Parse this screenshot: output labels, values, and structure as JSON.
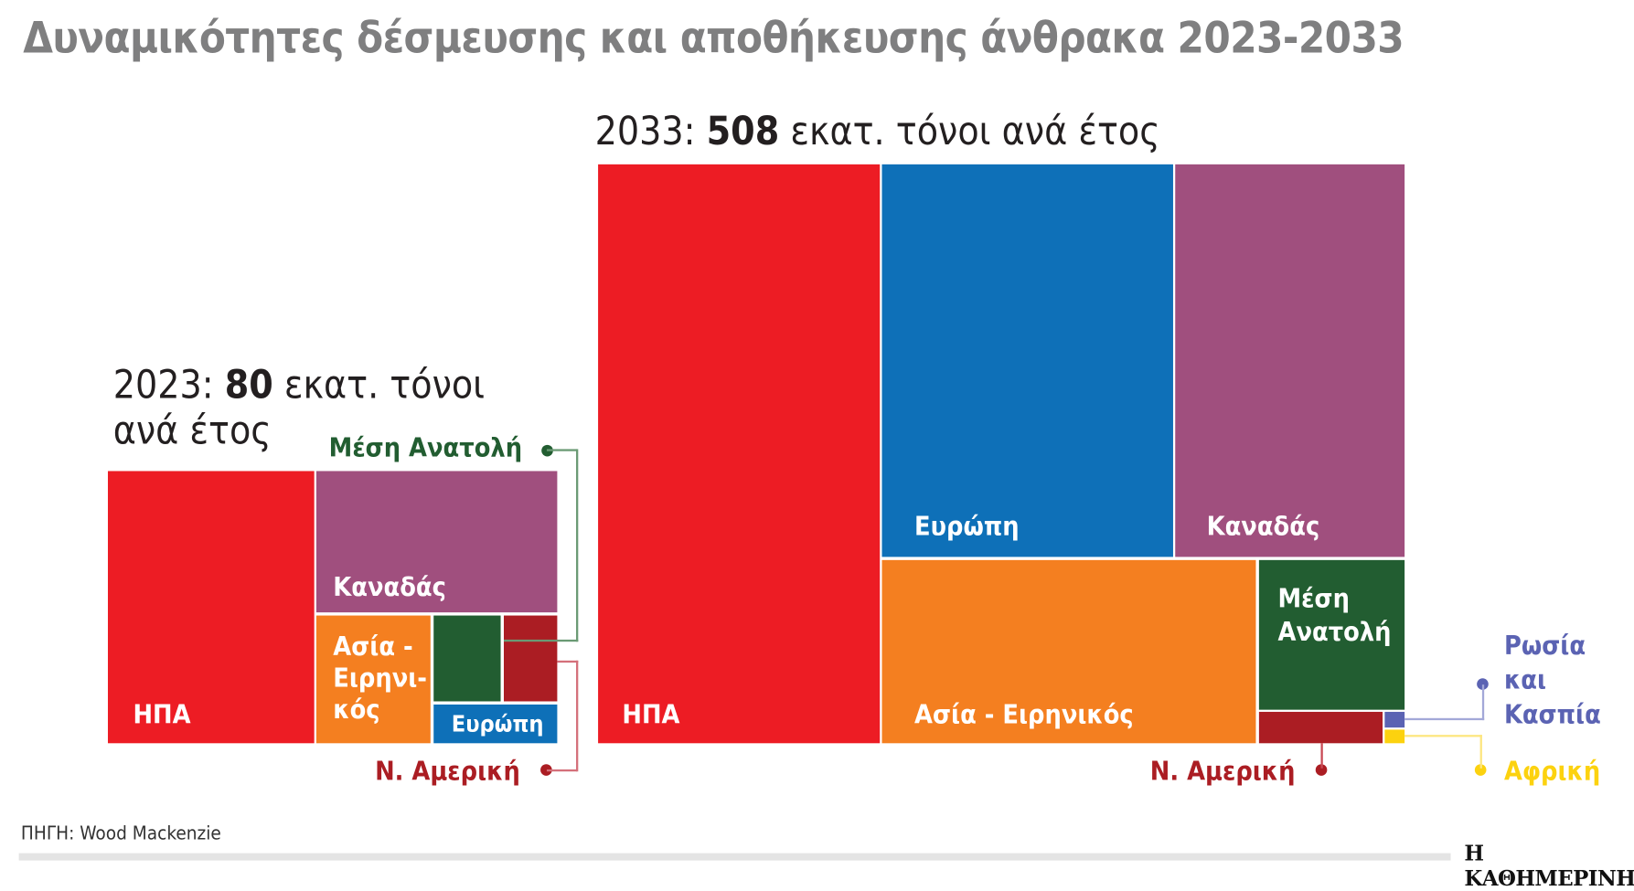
{
  "title": "Δυναμικότητες δέσμευσης και αποθήκευσης άνθρακα 2023-2033",
  "source": "ΠΗΓΗ: Wood Mackenzie",
  "logo": "Η ΚΑΘΗΜΕΡΙΝΗ",
  "colors": {
    "usa": "#ed1c24",
    "europe": "#0e70b8",
    "canada": "#a04f7e",
    "asia_pacific": "#f47f20",
    "middle_east": "#225d31",
    "south_america": "#ab1d23",
    "russia_caspian": "#5b63b3",
    "africa": "#fcd20f"
  },
  "chart_data": [
    {
      "type": "treemap",
      "year_label": "2023:",
      "total_value": "80",
      "total_unit_line1": "εκατ. τόνοι",
      "total_unit_line2": "ανά έτος",
      "total": 80,
      "unit": "εκατ. τόνοι ανά έτος",
      "labels": {
        "usa": "ΗΠΑ",
        "canada": "Καναδάς",
        "asia1": "Ασία -",
        "asia2": "Ειρηνι-",
        "asia3": "κός",
        "europe": "Ευρώπη",
        "middle_east": "Μέση Ανατολή",
        "south_america": "Ν. Αμερική"
      },
      "series": [
        {
          "name": "ΗΠΑ",
          "value": 37
        },
        {
          "name": "Καναδάς",
          "value": 22
        },
        {
          "name": "Ασία - Ειρηνικός",
          "value": 9.5
        },
        {
          "name": "Μέση Ανατολή",
          "value": 3.8
        },
        {
          "name": "Ν. Αμερική",
          "value": 3
        },
        {
          "name": "Ευρώπη",
          "value": 3.1
        }
      ]
    },
    {
      "type": "treemap",
      "year_label": "2033:",
      "total_value": "508",
      "total_unit": "εκατ. τόνοι ανά έτος",
      "total": 508,
      "unit": "εκατ. τόνοι ανά έτος",
      "labels": {
        "usa": "ΗΠΑ",
        "europe": "Ευρώπη",
        "canada": "Καναδάς",
        "asia": "Ασία - Ειρηνικός",
        "middle_east1": "Μέση",
        "middle_east2": "Ανατολή",
        "south_america": "Ν. Αμερική",
        "russia1": "Ρωσία",
        "russia2": "και",
        "russia3": "Κασπία",
        "africa": "Αφρική"
      },
      "series": [
        {
          "name": "ΗΠΑ",
          "value": 177
        },
        {
          "name": "Ευρώπη",
          "value": 124
        },
        {
          "name": "Καναδάς",
          "value": 98
        },
        {
          "name": "Ασία - Ειρηνικός",
          "value": 75
        },
        {
          "name": "Μέση Ανατολή",
          "value": 24
        },
        {
          "name": "Ν. Αμερική",
          "value": 4
        },
        {
          "name": "Ρωσία και Κασπία",
          "value": 0.5
        },
        {
          "name": "Αφρική",
          "value": 0.5
        }
      ]
    }
  ]
}
